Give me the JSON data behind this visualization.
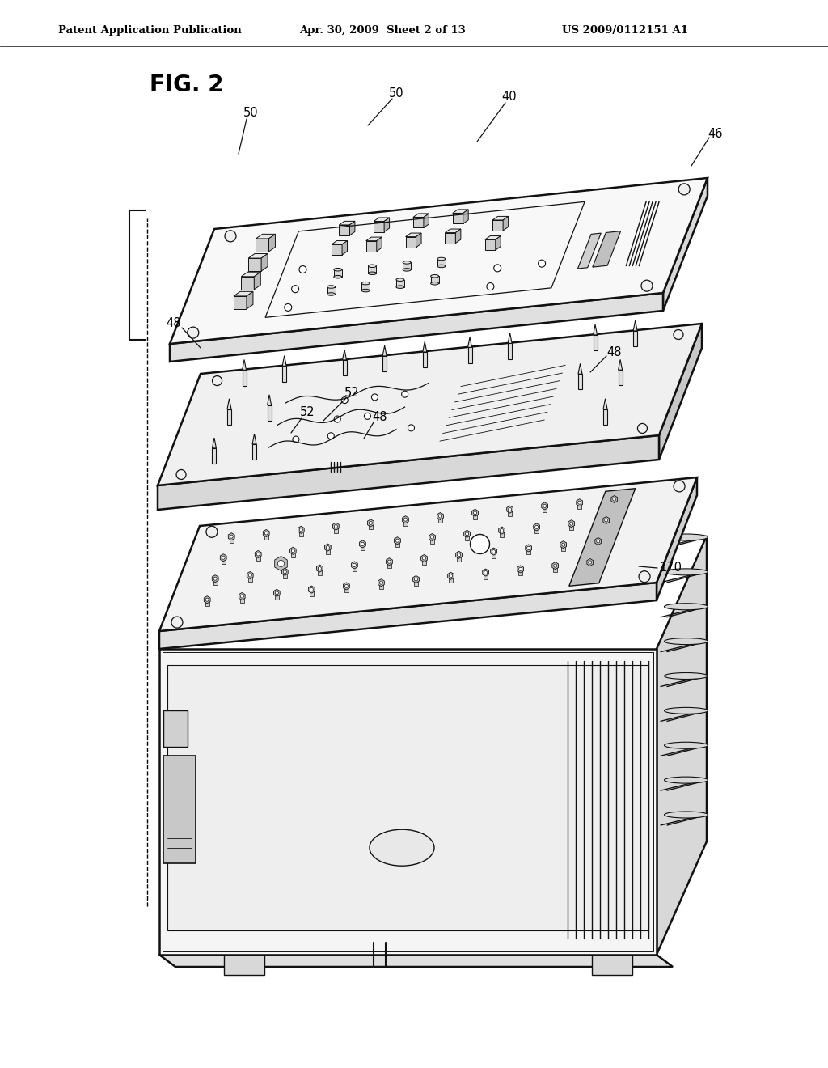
{
  "background_color": "#ffffff",
  "header_left": "Patent Application Publication",
  "header_center": "Apr. 30, 2009  Sheet 2 of 13",
  "header_right": "US 2009/0112151 A1",
  "fig_label": "FIG. 2",
  "figure_width": 10.24,
  "figure_height": 13.2,
  "dpi": 100,
  "lw_main": 1.8,
  "lw_thin": 1.0,
  "lw_detail": 0.7,
  "line_color": "#111111",
  "fill_white": "#ffffff",
  "fill_light": "#f0f0f0",
  "fill_mid": "#e0e0e0",
  "fill_dark": "#c8c8c8"
}
